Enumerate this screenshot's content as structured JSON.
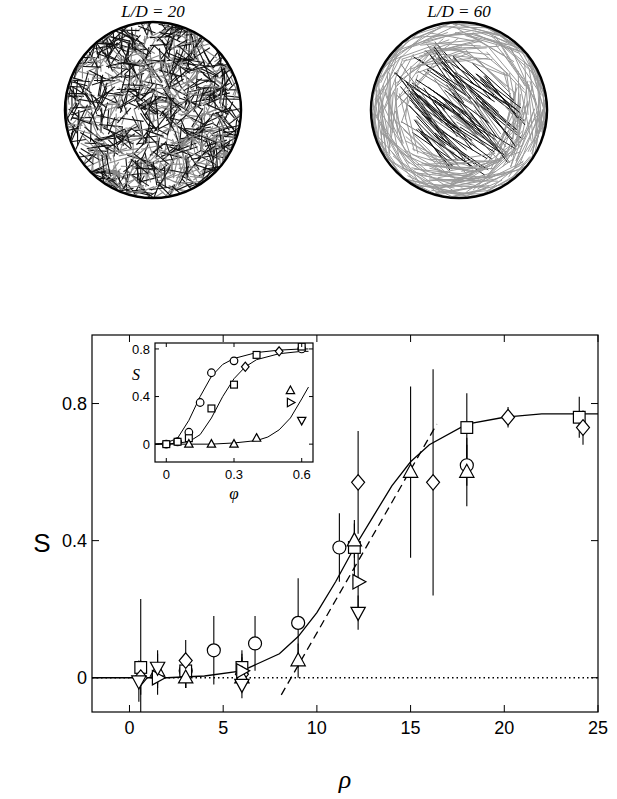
{
  "panels": [
    {
      "title": "L/D = 20"
    },
    {
      "title": "L/D = 60"
    }
  ],
  "chart_data": [
    {
      "type": "scatter",
      "x_label": "ρ",
      "y_label": "S",
      "xlim": [
        -2,
        25
      ],
      "xticks": [
        0,
        5,
        10,
        15,
        20,
        25
      ],
      "ylim": [
        -0.1,
        1.0
      ],
      "yticks": [
        0,
        0.4,
        0.8
      ],
      "series": [
        {
          "type": "scatter",
          "marker": "circle",
          "color": "#000000",
          "x": [
            3.0,
            4.5,
            6.7,
            9.0,
            11.2,
            18.0
          ],
          "values": [
            0.02,
            0.08,
            0.1,
            0.16,
            0.38,
            0.62
          ],
          "errors": [
            0.05,
            0.1,
            0.08,
            0.13,
            0.1,
            0.06
          ]
        },
        {
          "type": "scatter",
          "marker": "square",
          "color": "#000000",
          "x": [
            0.6,
            3.0,
            6.0,
            12.0,
            18.0,
            24.0
          ],
          "values": [
            0.03,
            0.02,
            0.03,
            0.38,
            0.73,
            0.76
          ],
          "errors": [
            0.2,
            0.05,
            0.05,
            0.08,
            0.1,
            0.06
          ]
        },
        {
          "type": "scatter",
          "marker": "diamond",
          "color": "#000000",
          "x": [
            0.6,
            3.0,
            6.0,
            12.2,
            16.2,
            20.2,
            24.2
          ],
          "values": [
            0.0,
            0.05,
            0.01,
            0.57,
            0.57,
            0.76,
            0.73
          ],
          "errors": [
            0.05,
            0.06,
            0.05,
            0.15,
            0.33,
            0.03,
            0.05
          ]
        },
        {
          "type": "scatter",
          "marker": "triangle-up",
          "color": "#000000",
          "x": [
            1.5,
            3.0,
            6.0,
            9.0,
            12.0,
            15.0,
            18.0
          ],
          "values": [
            0.02,
            0.0,
            0.0,
            0.05,
            0.4,
            0.6,
            0.6
          ],
          "errors": [
            0.05,
            0.03,
            0.04,
            0.05,
            0.05,
            0.25,
            0.1
          ]
        },
        {
          "type": "scatter",
          "marker": "triangle-right",
          "color": "#000000",
          "x": [
            1.5,
            6.0,
            12.2
          ],
          "values": [
            0.0,
            0.02,
            0.28
          ],
          "errors": [
            0.05,
            0.05,
            0.09
          ]
        },
        {
          "type": "scatter",
          "marker": "triangle-down",
          "color": "#000000",
          "x": [
            0.5,
            1.5,
            6.0,
            12.2
          ],
          "values": [
            -0.01,
            0.03,
            -0.02,
            0.19
          ],
          "errors": [
            0.06,
            0.05,
            0.04,
            0.05
          ]
        },
        {
          "type": "line",
          "line_style": "solid",
          "color": "#000000",
          "x": [
            -2,
            0,
            2,
            4,
            6,
            8,
            9,
            10,
            11,
            12,
            13,
            14,
            15,
            16,
            18,
            20,
            22,
            25
          ],
          "values": [
            0,
            0,
            0,
            0.005,
            0.02,
            0.07,
            0.12,
            0.19,
            0.28,
            0.38,
            0.47,
            0.56,
            0.63,
            0.68,
            0.74,
            0.76,
            0.77,
            0.77
          ]
        },
        {
          "type": "line",
          "line_style": "dashed",
          "color": "#000000",
          "x": [
            8.1,
            16.4
          ],
          "values": [
            -0.05,
            0.74
          ]
        },
        {
          "type": "line",
          "line_style": "dotted",
          "color": "#000000",
          "x": [
            -2,
            25
          ],
          "values": [
            0,
            0
          ]
        }
      ]
    },
    {
      "type": "scatter",
      "x_label": "φ",
      "y_label": "S",
      "xlim": [
        -0.05,
        0.65
      ],
      "xticks": [
        0,
        0.3,
        0.6
      ],
      "ylim": [
        -0.15,
        0.85
      ],
      "yticks": [
        0,
        0.4,
        0.8
      ],
      "series": [
        {
          "type": "scatter",
          "marker": "circle",
          "color": "#000000",
          "x": [
            0,
            0.05,
            0.1,
            0.15,
            0.2,
            0.3,
            0.6
          ],
          "values": [
            0,
            0.02,
            0.1,
            0.35,
            0.6,
            0.7,
            0.8
          ]
        },
        {
          "type": "scatter",
          "marker": "square",
          "color": "#000000",
          "x": [
            0,
            0.05,
            0.1,
            0.2,
            0.3,
            0.4,
            0.6
          ],
          "values": [
            0,
            0.02,
            0.05,
            0.3,
            0.5,
            0.75,
            0.82
          ]
        },
        {
          "type": "scatter",
          "marker": "diamond",
          "color": "#000000",
          "x": [
            0.35,
            0.5
          ],
          "values": [
            0.65,
            0.78
          ]
        },
        {
          "type": "scatter",
          "marker": "triangle-up",
          "color": "#000000",
          "x": [
            0.1,
            0.2,
            0.3,
            0.4,
            0.55
          ],
          "values": [
            0,
            0,
            0,
            0.05,
            0.45
          ]
        },
        {
          "type": "scatter",
          "marker": "triangle-right",
          "color": "#000000",
          "x": [
            0.55
          ],
          "values": [
            0.35
          ]
        },
        {
          "type": "scatter",
          "marker": "triangle-down",
          "color": "#000000",
          "x": [
            0.6
          ],
          "values": [
            0.2
          ]
        },
        {
          "type": "line",
          "line_style": "solid",
          "color": "#000000",
          "x": [
            -0.05,
            0,
            0.05,
            0.1,
            0.15,
            0.2,
            0.25,
            0.3,
            0.4,
            0.5,
            0.6,
            0.63
          ],
          "values": [
            0,
            0.01,
            0.05,
            0.2,
            0.4,
            0.57,
            0.67,
            0.72,
            0.77,
            0.79,
            0.8,
            0.8
          ]
        },
        {
          "type": "line",
          "line_style": "solid",
          "color": "#000000",
          "x": [
            -0.05,
            0,
            0.1,
            0.15,
            0.2,
            0.25,
            0.3,
            0.35,
            0.4,
            0.5,
            0.6,
            0.63
          ],
          "values": [
            0,
            0,
            0.02,
            0.08,
            0.22,
            0.4,
            0.55,
            0.65,
            0.71,
            0.76,
            0.78,
            0.78
          ]
        },
        {
          "type": "line",
          "line_style": "solid",
          "color": "#000000",
          "x": [
            -0.05,
            0.1,
            0.2,
            0.3,
            0.4,
            0.45,
            0.5,
            0.55,
            0.6,
            0.63
          ],
          "values": [
            0,
            0,
            0,
            0.01,
            0.03,
            0.06,
            0.12,
            0.22,
            0.38,
            0.48
          ]
        }
      ]
    }
  ]
}
